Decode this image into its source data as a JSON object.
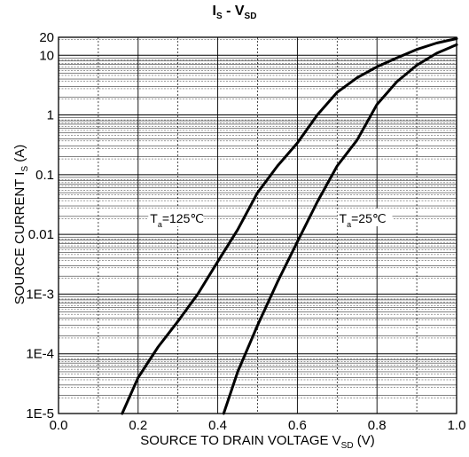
{
  "chart_data": {
    "type": "line",
    "title": {
      "main": "I",
      "main_sub": "S",
      "sep": " - V",
      "sep_sub": "SD"
    },
    "xlabel": {
      "text": "SOURCE TO DRAIN VOLTAGE V",
      "sub": "SD",
      "unit": " (V)"
    },
    "ylabel": {
      "text": "SOURCE CURRENT I",
      "sub": "S",
      "unit": " (A)"
    },
    "xlim": [
      0.0,
      1.0
    ],
    "ylim": [
      1e-05,
      20
    ],
    "yscale": "log",
    "grid": true,
    "x_ticks": [
      "0.0",
      "0.2",
      "0.4",
      "0.6",
      "0.8",
      "1.0"
    ],
    "y_ticks": [
      {
        "value": 20,
        "label": "20"
      },
      {
        "value": 10,
        "label": "10"
      },
      {
        "value": 1,
        "label": "1"
      },
      {
        "value": 0.1,
        "label": "0.1"
      },
      {
        "value": 0.01,
        "label": "0.01"
      },
      {
        "value": 0.001,
        "label": "1E-3"
      },
      {
        "value": 0.0001,
        "label": "1E-4"
      },
      {
        "value": 1e-05,
        "label": "1E-5"
      }
    ],
    "series": [
      {
        "label": "T",
        "label_sub": "a",
        "label_rest": "=125℃",
        "label_at": {
          "x": 0.23,
          "y": 0.018
        },
        "points": [
          [
            0.16,
            1e-05
          ],
          [
            0.2,
            4e-05
          ],
          [
            0.25,
            0.00013
          ],
          [
            0.3,
            0.00035
          ],
          [
            0.35,
            0.001
          ],
          [
            0.4,
            0.0035
          ],
          [
            0.45,
            0.012
          ],
          [
            0.5,
            0.05
          ],
          [
            0.55,
            0.14
          ],
          [
            0.6,
            0.34
          ],
          [
            0.65,
            1.0
          ],
          [
            0.7,
            2.4
          ],
          [
            0.75,
            4.2
          ],
          [
            0.8,
            6.4
          ],
          [
            0.85,
            9.0
          ],
          [
            0.9,
            12.5
          ],
          [
            0.95,
            16.0
          ],
          [
            1.0,
            19.0
          ]
        ]
      },
      {
        "label": "T",
        "label_sub": "a",
        "label_rest": "=25℃",
        "label_at": {
          "x": 0.705,
          "y": 0.018
        },
        "points": [
          [
            0.415,
            1e-05
          ],
          [
            0.45,
            5e-05
          ],
          [
            0.5,
            0.0003
          ],
          [
            0.55,
            0.0016
          ],
          [
            0.6,
            0.0075
          ],
          [
            0.65,
            0.035
          ],
          [
            0.7,
            0.14
          ],
          [
            0.75,
            0.38
          ],
          [
            0.8,
            1.5
          ],
          [
            0.85,
            3.6
          ],
          [
            0.9,
            6.8
          ],
          [
            0.95,
            10.8
          ],
          [
            1.0,
            15.0
          ]
        ]
      }
    ]
  }
}
